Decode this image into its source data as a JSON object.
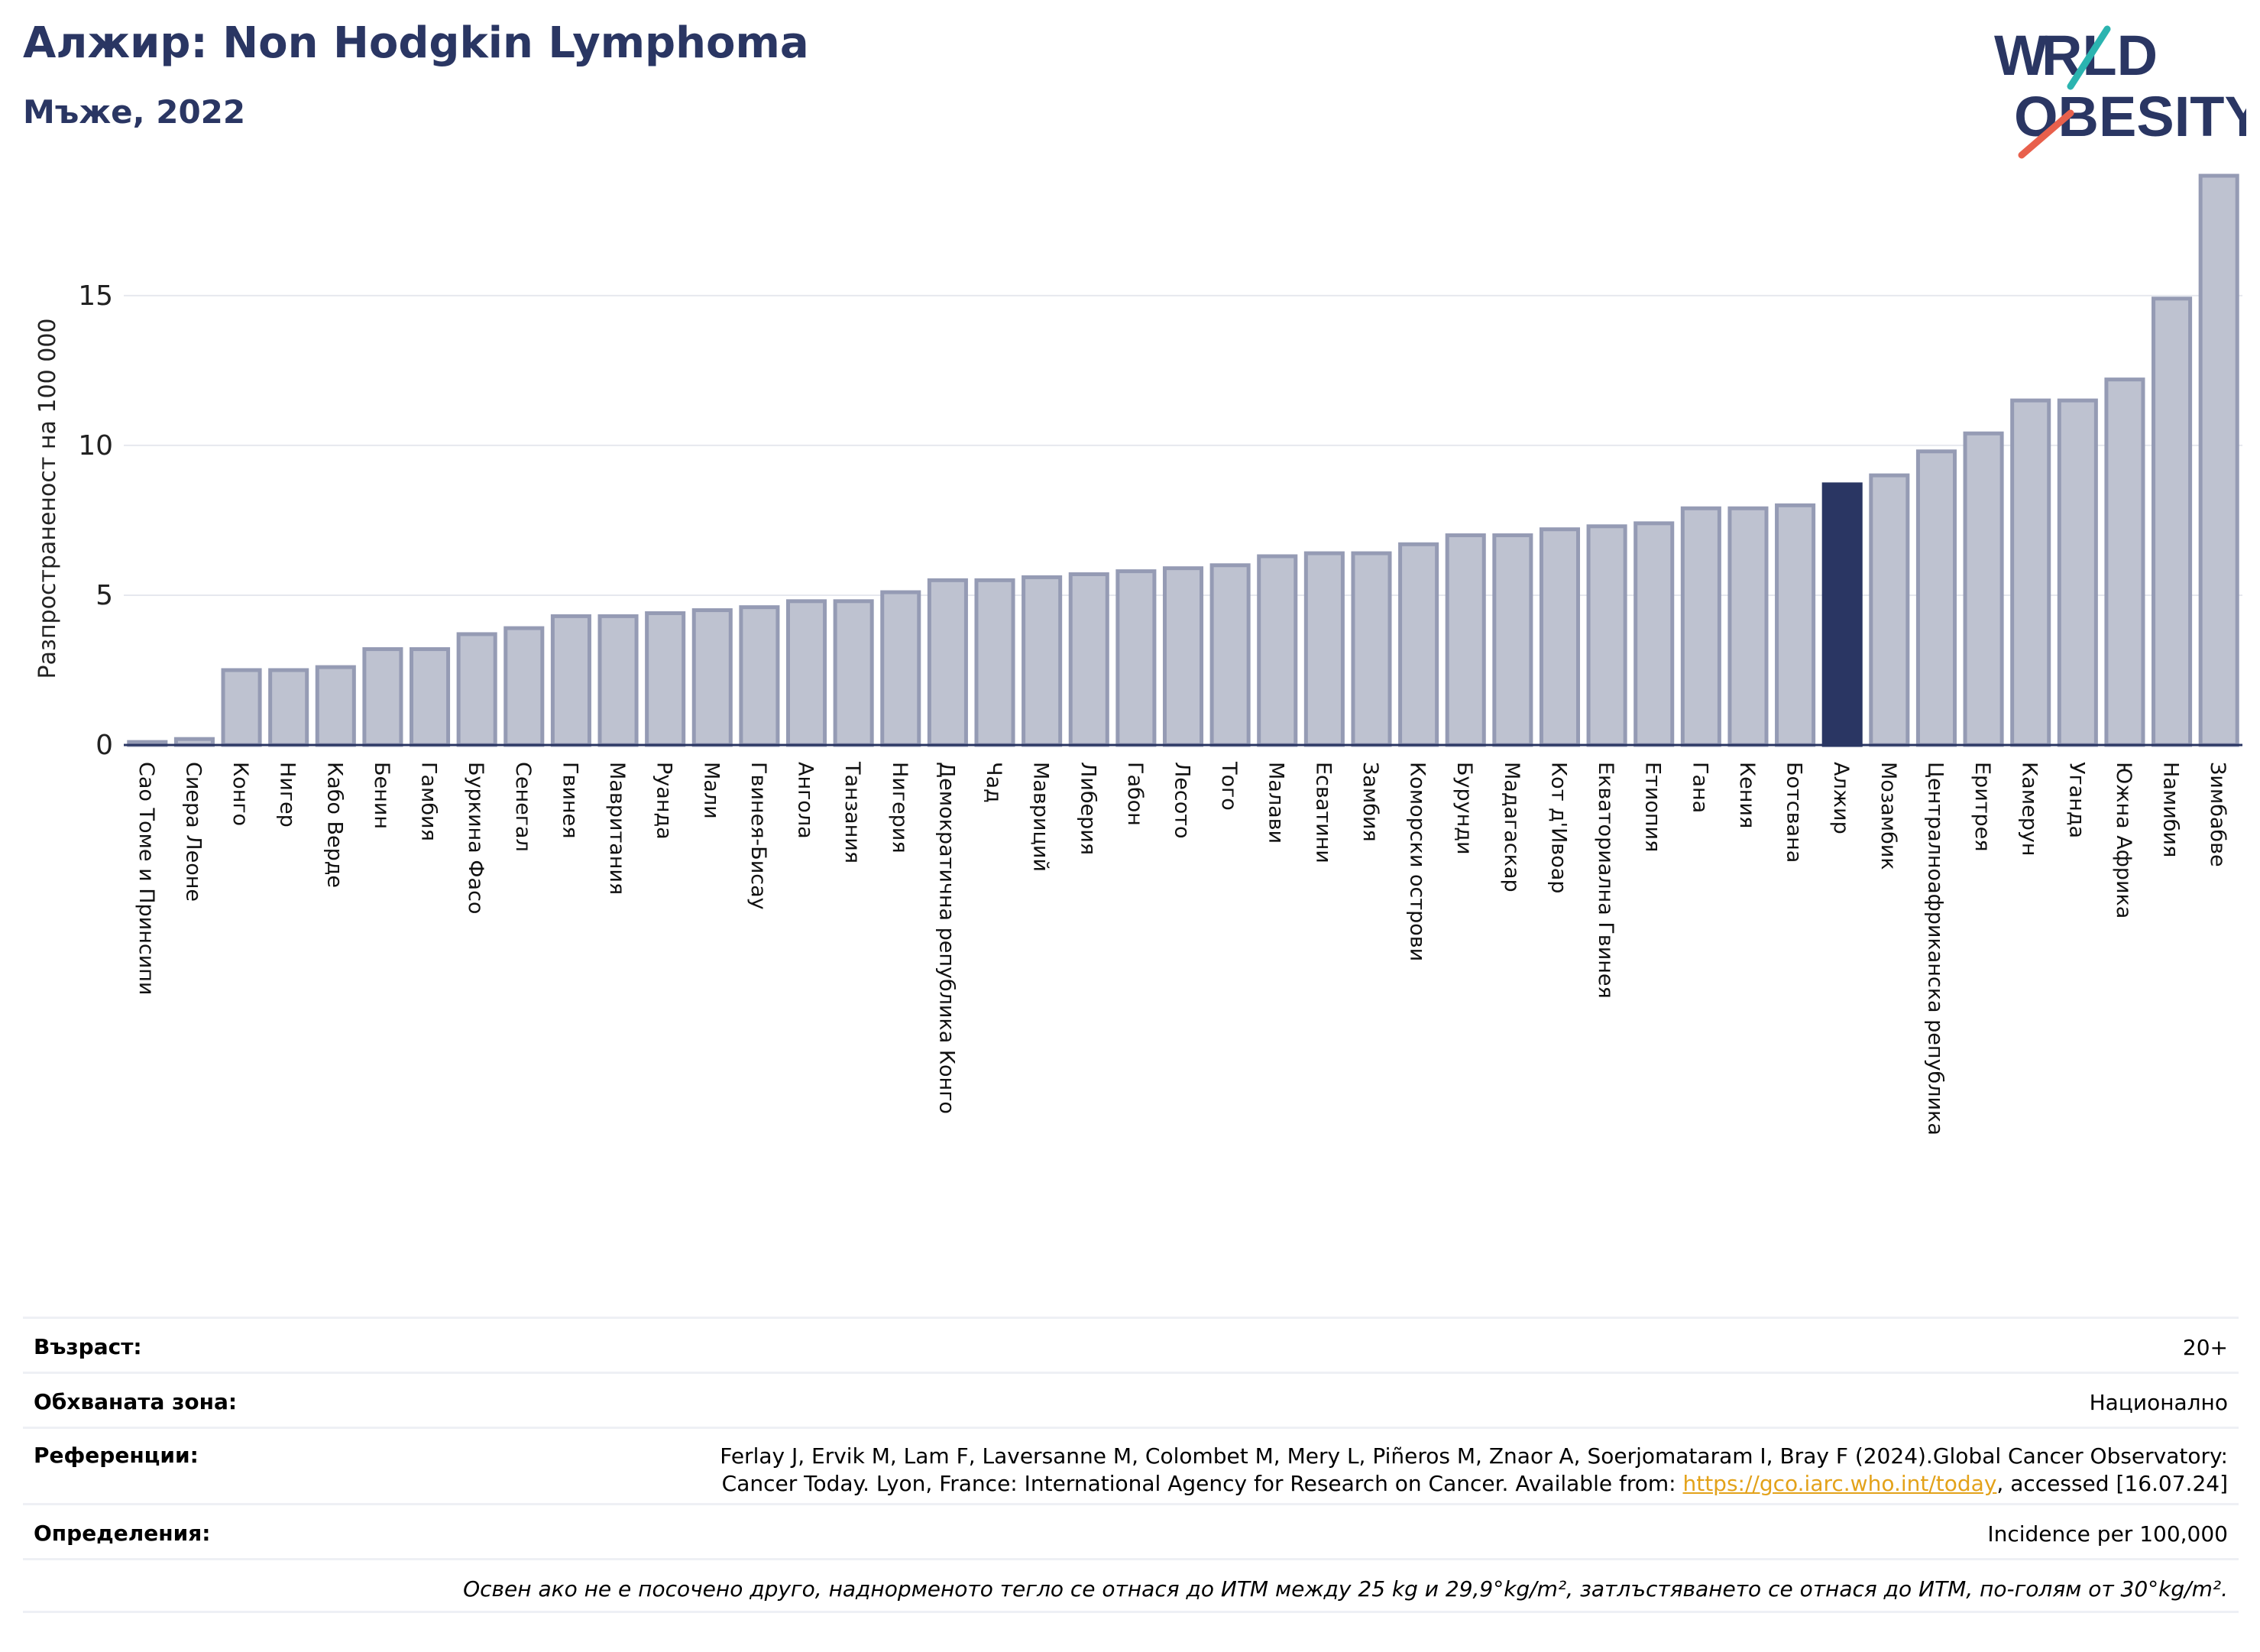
{
  "header": {
    "title": "Алжир: Non Hodgkin Lymphoma",
    "subtitle": "Мъже, 2022"
  },
  "logo": {
    "line1": "WORLD",
    "line2": "OBESITY"
  },
  "colors": {
    "bar_default": "#bec2d0",
    "bar_border": "#959bb4",
    "bar_highlight": "#2a3663",
    "title": "#2a3663",
    "logo_teal": "#2bb4b0",
    "logo_red": "#e8604c"
  },
  "chart_data": {
    "type": "bar",
    "ylabel": "Разпространеност  на 100 000",
    "ylim": [
      0,
      19
    ],
    "yticks": [
      0,
      5,
      10,
      15
    ],
    "grid": true,
    "highlight": "Алжир",
    "categories": [
      "Сао Томе и Принсипи",
      "Сиера Леоне",
      "Конго",
      "Нигер",
      "Кабо Верде",
      "Бенин",
      "Гамбия",
      "Буркина Фасо",
      "Сенегал",
      "Гвинея",
      "Мавритания",
      "Руанда",
      "Мали",
      "Гвинея-Бисау",
      "Ангола",
      "Танзания",
      "Нигерия",
      "Демократична република Конго",
      "Чад",
      "Мавриций",
      "Либерия",
      "Габон",
      "Лесото",
      "Того",
      "Малави",
      "Есватини",
      "Замбия",
      "Коморски острови",
      "Бурунди",
      "Мадагаскар",
      "Кот д'Ивоар",
      "Екваториална Гвинея",
      "Етиопия",
      "Гана",
      "Кения",
      "Ботсвана",
      "Алжир",
      "Мозамбик",
      "Централноафриканска република",
      "Еритрея",
      "Камерун",
      "Уганда",
      "Южна Африка",
      "Намибия",
      "Зимбабве"
    ],
    "values": [
      0.1,
      0.2,
      2.5,
      2.5,
      2.6,
      3.2,
      3.2,
      3.7,
      3.9,
      4.3,
      4.3,
      4.4,
      4.5,
      4.6,
      4.8,
      4.8,
      5.1,
      5.5,
      5.5,
      5.6,
      5.7,
      5.8,
      5.9,
      6.0,
      6.3,
      6.4,
      6.4,
      6.7,
      7.0,
      7.0,
      7.2,
      7.3,
      7.4,
      7.9,
      7.9,
      8.0,
      8.7,
      9.0,
      9.8,
      10.4,
      11.5,
      11.5,
      12.2,
      14.9,
      19.0
    ]
  },
  "info": {
    "age_label": "Възраст:",
    "age_value": "20+",
    "coverage_label": "Обхваната зона:",
    "coverage_value": "Национално",
    "references_label": "Референции:",
    "references_line1": "Ferlay J, Ervik M, Lam F, Laversanne M, Colombet M, Mery L, Piñeros M, Znaor A, Soerjomataram I, Bray F (2024).Global Cancer Observatory:",
    "references_line2_prefix": "Cancer Today. Lyon, France: International Agency for Research on Cancer. Available from: ",
    "references_link": "https://gco.iarc.who.int/today",
    "references_line2_suffix": ", accessed [16.07.24]",
    "definitions_label": "Определения:",
    "definitions_value": "Incidence per 100,000",
    "footnote": "Освен ако не е посочено друго, наднорменото тегло се отнася до ИТМ между 25 kg и 29,9°kg/m², затлъстяването се отнася до ИТМ, по-голям от 30°kg/m²."
  }
}
